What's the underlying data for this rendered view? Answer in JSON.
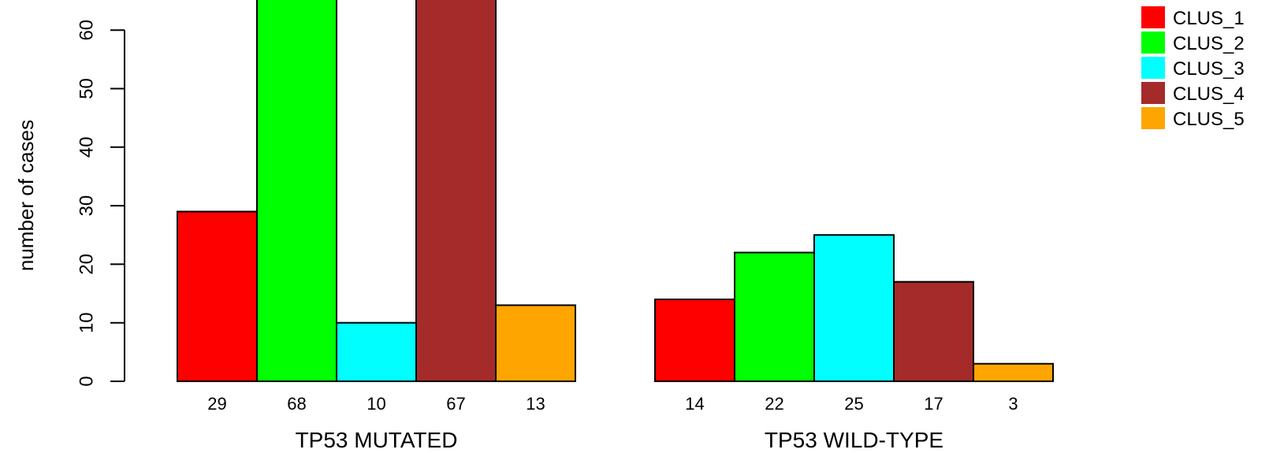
{
  "chart_data": {
    "type": "bar",
    "ylabel": "number of cases",
    "ylim": [
      0,
      66
    ],
    "yticks": [
      0,
      10,
      20,
      30,
      40,
      50,
      60
    ],
    "groups": [
      {
        "label": "TP53 MUTATED",
        "values": [
          29,
          68,
          10,
          67,
          13
        ]
      },
      {
        "label": "TP53 WILD-TYPE",
        "values": [
          14,
          22,
          25,
          17,
          3
        ]
      }
    ],
    "series": [
      {
        "name": "CLUS_1",
        "color": "#ff0000"
      },
      {
        "name": "CLUS_2",
        "color": "#00ff00"
      },
      {
        "name": "CLUS_3",
        "color": "#00ffff"
      },
      {
        "name": "CLUS_4",
        "color": "#a52a2a"
      },
      {
        "name": "CLUS_5",
        "color": "#ffa500"
      }
    ],
    "legend_position": "top-right",
    "grid": false
  }
}
